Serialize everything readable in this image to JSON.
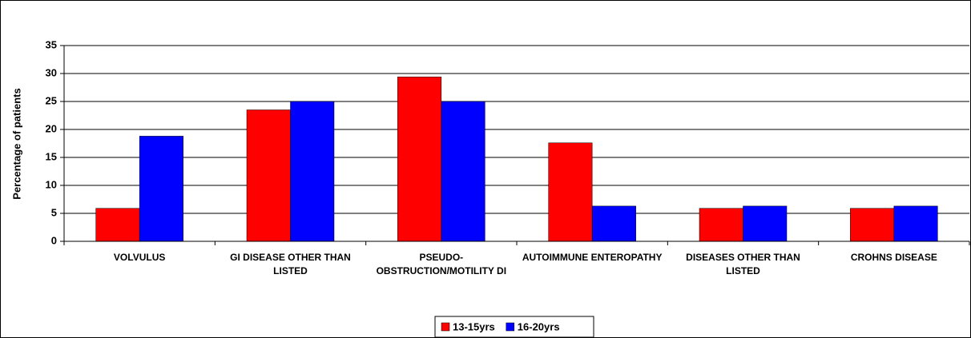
{
  "chart_data": {
    "type": "bar",
    "y_label": "Percentage of patients",
    "categories": [
      "VOLVULUS",
      "GI DISEASE OTHER THAN LISTED",
      "PSEUDO-OBSTRUCTION/MOTILITY DI",
      "AUTOIMMUNE ENTEROPATHY",
      "DISEASES OTHER THAN LISTED",
      "CROHNS DISEASE"
    ],
    "series": [
      {
        "name": "13-15yrs",
        "color": "#ff0000",
        "values": [
          5.9,
          23.5,
          29.4,
          17.6,
          5.9,
          5.9
        ]
      },
      {
        "name": "16-20yrs",
        "color": "#0000ff",
        "values": [
          18.8,
          25,
          25,
          6.3,
          6.3,
          6.3
        ]
      }
    ],
    "ylim": [
      0,
      35
    ],
    "yticks": [
      0,
      5,
      10,
      15,
      20,
      25,
      30,
      35
    ],
    "grid": true
  }
}
